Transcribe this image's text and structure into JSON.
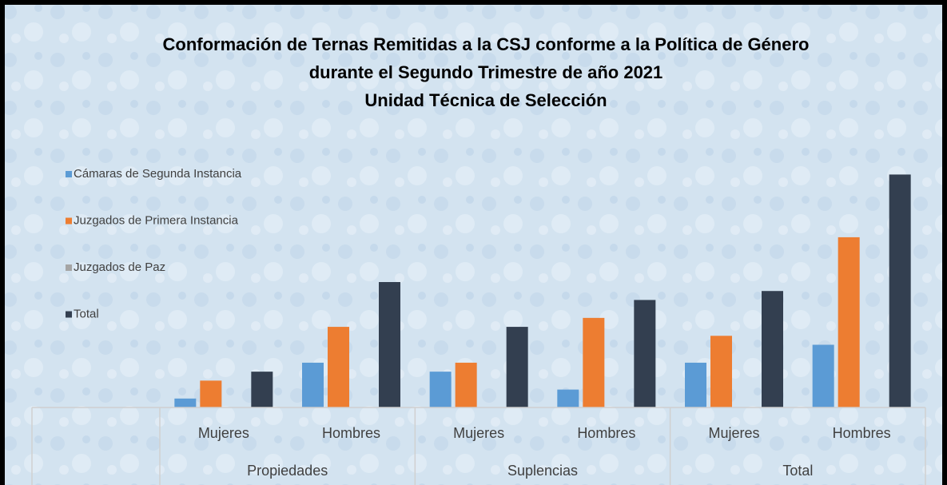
{
  "chart_data": {
    "type": "bar",
    "title": [
      "Conformación de Ternas Remitidas a la CSJ conforme a la Política de Género",
      "durante el Segundo Trimestre de año 2021",
      "Unidad Técnica de Selección"
    ],
    "groups": [
      "Propiedades",
      "Suplencias",
      "Total"
    ],
    "categories": [
      "Mujeres",
      "Hombres",
      "Mujeres",
      "Hombres",
      "Mujeres",
      "Hombres"
    ],
    "series": [
      {
        "name": "Cámaras de Segunda  Instancia",
        "color": "#5b9bd5",
        "values": [
          1,
          5,
          4,
          2,
          5,
          7
        ]
      },
      {
        "name": "Juzgados de Primera Instancia",
        "color": "#ed7d31",
        "values": [
          3,
          9,
          5,
          10,
          8,
          19
        ]
      },
      {
        "name": "Juzgados de Paz",
        "color": "#a5a5a5",
        "values": [
          0,
          0,
          0,
          0,
          0,
          0
        ]
      },
      {
        "name": "Total",
        "color": "#333f50",
        "values": [
          4,
          14,
          9,
          12,
          13,
          26
        ]
      }
    ],
    "ylim": [
      0,
      28
    ]
  }
}
